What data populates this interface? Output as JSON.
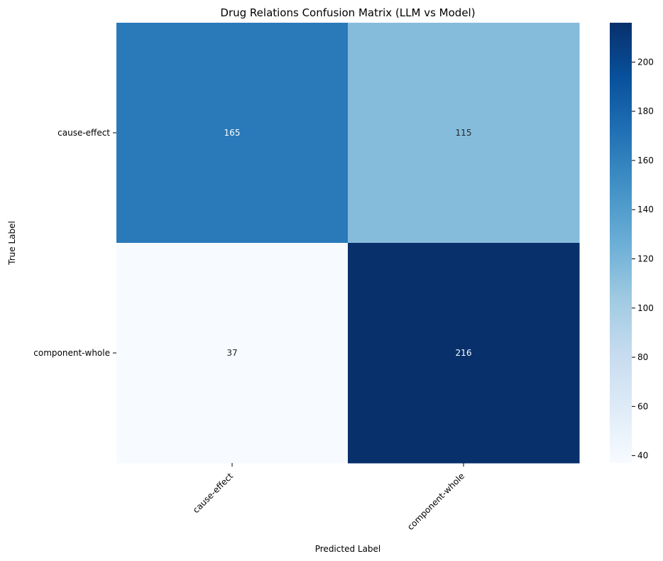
{
  "chart_data": {
    "type": "heatmap",
    "title": "Drug Relations Confusion Matrix (LLM vs Model)",
    "xlabel": "Predicted Label",
    "ylabel": "True Label",
    "x_categories": [
      "cause-effect",
      "component-whole"
    ],
    "y_categories": [
      "cause-effect",
      "component-whole"
    ],
    "values": [
      [
        165,
        115
      ],
      [
        37,
        216
      ]
    ],
    "colormap": "Blues",
    "colorbar": {
      "vmin": 37,
      "vmax": 216,
      "ticks": [
        40,
        60,
        80,
        100,
        120,
        140,
        160,
        180,
        200
      ]
    },
    "annotated": true,
    "grid": false
  }
}
